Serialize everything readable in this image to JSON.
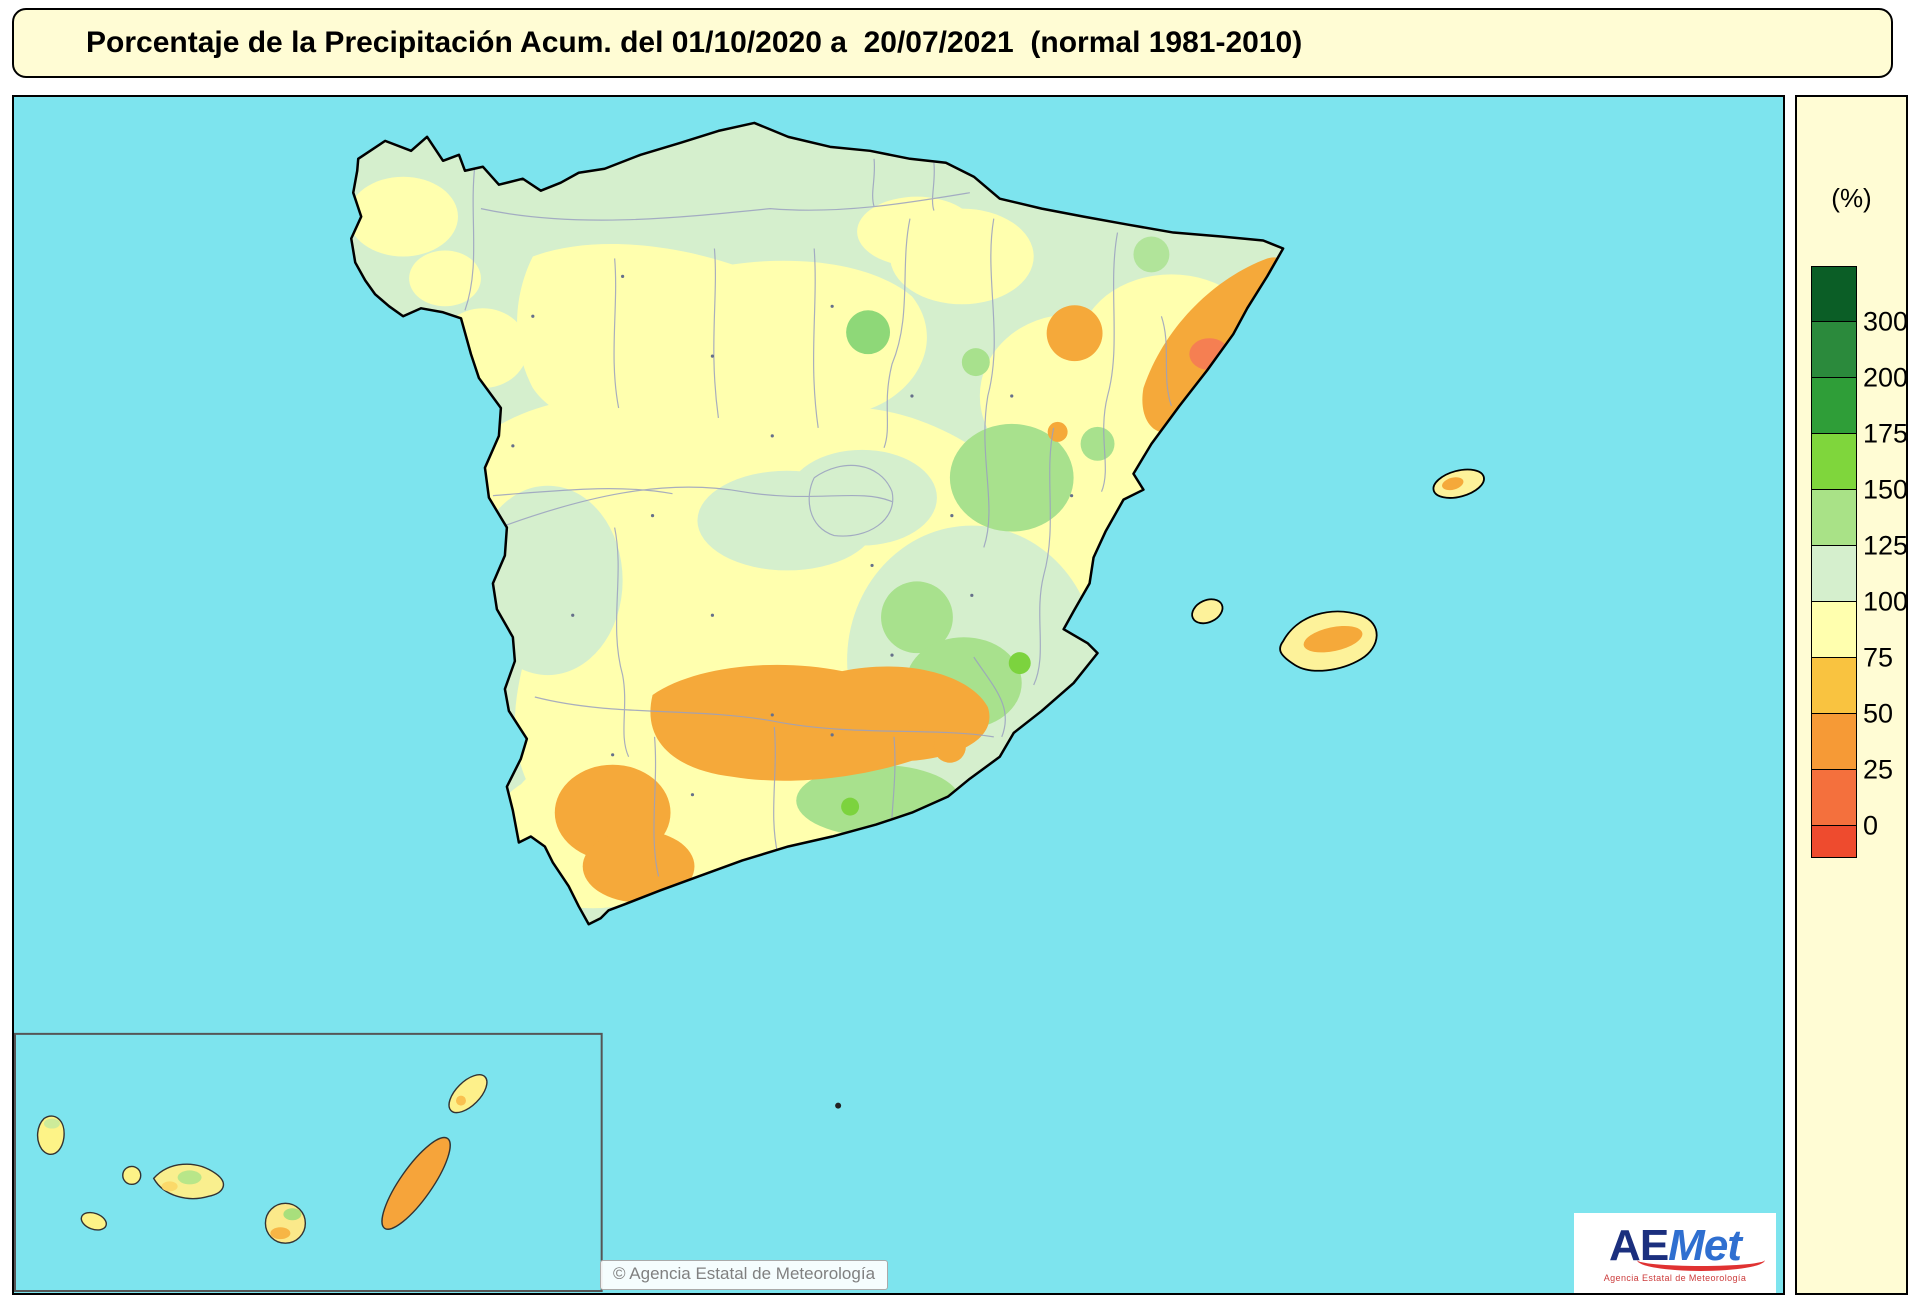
{
  "title": {
    "text": "Porcentaje de la Precipitación Acum. del 01/10/2020 a  20/07/2021  (normal 1981-2010)"
  },
  "legend": {
    "unit_label": "(%)",
    "labels": [
      "300",
      "200",
      "175",
      "150",
      "125",
      "100",
      "75",
      "50",
      "25",
      "0"
    ],
    "segments": [
      "#0b5e26",
      "#2b8a3c",
      "#2f9e38",
      "#7fd63c",
      "#a9e287",
      "#d5efcd",
      "#ffffae",
      "#f9c340",
      "#f69a36",
      "#f4703d",
      "#ee4b2e"
    ]
  },
  "map": {
    "attribution": "© Agencia Estatal de Meteorología",
    "sea_color": "#7de4ee",
    "panel_color": "#fffcd4",
    "land_normal_color": "#d5efcd",
    "land_dry_color": "#ffffae",
    "land_very_dry_color": "#f5a93a",
    "land_wet_color": "#a8e18d",
    "land_extreme_dry_color": "#f57f52"
  },
  "logo": {
    "part1": "A",
    "part2": "E",
    "part3": "Met",
    "subtext": "Agencia Estatal de Meteorología"
  }
}
